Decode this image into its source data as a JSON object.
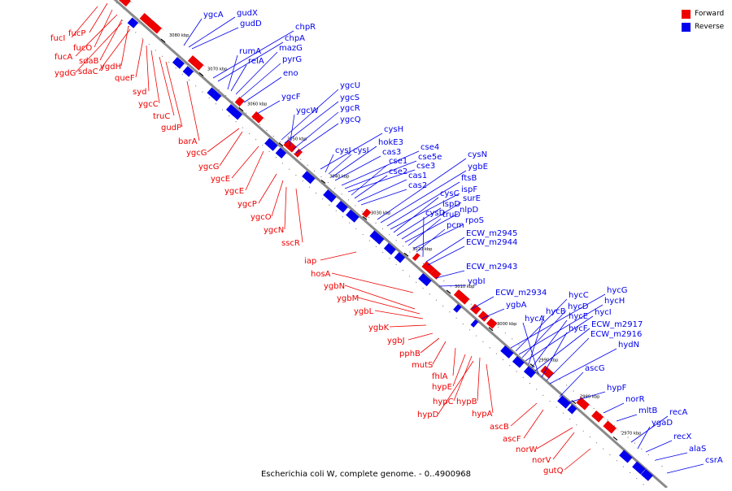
{
  "legend": {
    "forward": "Forward",
    "reverse": "Reverse"
  },
  "colors": {
    "forward": "#ee0000",
    "reverse": "#0000ee",
    "axis": "#8a8a8a"
  },
  "caption": "Escherichia coli W, complete genome. - 0..4900968",
  "ticks": [
    "3080 kbp",
    "3070 kbp",
    "3060 kbp",
    "3050 kbp",
    "3040 kbp",
    "3030 kbp",
    "3020 kbp",
    "3010 kbp",
    "3000 kbp",
    "2990 kbp",
    "2980 kbp",
    "2970 kbp"
  ],
  "forward_genes": [
    "fucI",
    "fucP",
    "fucO",
    "fucA",
    "sdaB",
    "ygdH",
    "ygdG",
    "sdaC",
    "queF",
    "syd",
    "ygcC",
    "truC",
    "gudP",
    "barA",
    "ygcG",
    "ygcG",
    "ygcE",
    "ygcE",
    "ygcP",
    "ygcO",
    "ygcN",
    "sscR",
    "iap",
    "hosA",
    "ygbN",
    "ygbM",
    "ygbL",
    "ygbK",
    "ygbJ",
    "pphB",
    "mutS",
    "fhlA",
    "hypE",
    "hypC",
    "hypB",
    "hypD",
    "hypA",
    "ascB",
    "ascF",
    "norW",
    "norV",
    "gutQ"
  ],
  "reverse_genes": [
    "ygcA",
    "gudX",
    "gudD",
    "chpR",
    "chpA",
    "rumA",
    "relA",
    "mazG",
    "pyrG",
    "eno",
    "ygcF",
    "ygcU",
    "ygcS",
    "ygcW",
    "ygcR",
    "ygcQ",
    "cysH",
    "cysJ",
    "cysI",
    "hokE3",
    "cas3",
    "cse4",
    "cse5e",
    "cse3",
    "cse1",
    "cse2",
    "cas1",
    "cas2",
    "cysN",
    "ygbE",
    "ftsB",
    "ispF",
    "cysC",
    "ispD",
    "surE",
    "nlpD",
    "truD",
    "rpoS",
    "pcm",
    "cysD",
    "ECW_m2945",
    "ECW_m2944",
    "ECW_m2943",
    "ygbI",
    "ECW_m2934",
    "ygbA",
    "hycG",
    "hycC",
    "hycH",
    "hycD",
    "hycI",
    "hycB",
    "hycE",
    "ECW_m2917",
    "hycA",
    "hycF",
    "ECW_m2916",
    "hydN",
    "ascG",
    "hypF",
    "norR",
    "mltB",
    "recA",
    "ygaD",
    "recX",
    "alaS",
    "csrA"
  ]
}
